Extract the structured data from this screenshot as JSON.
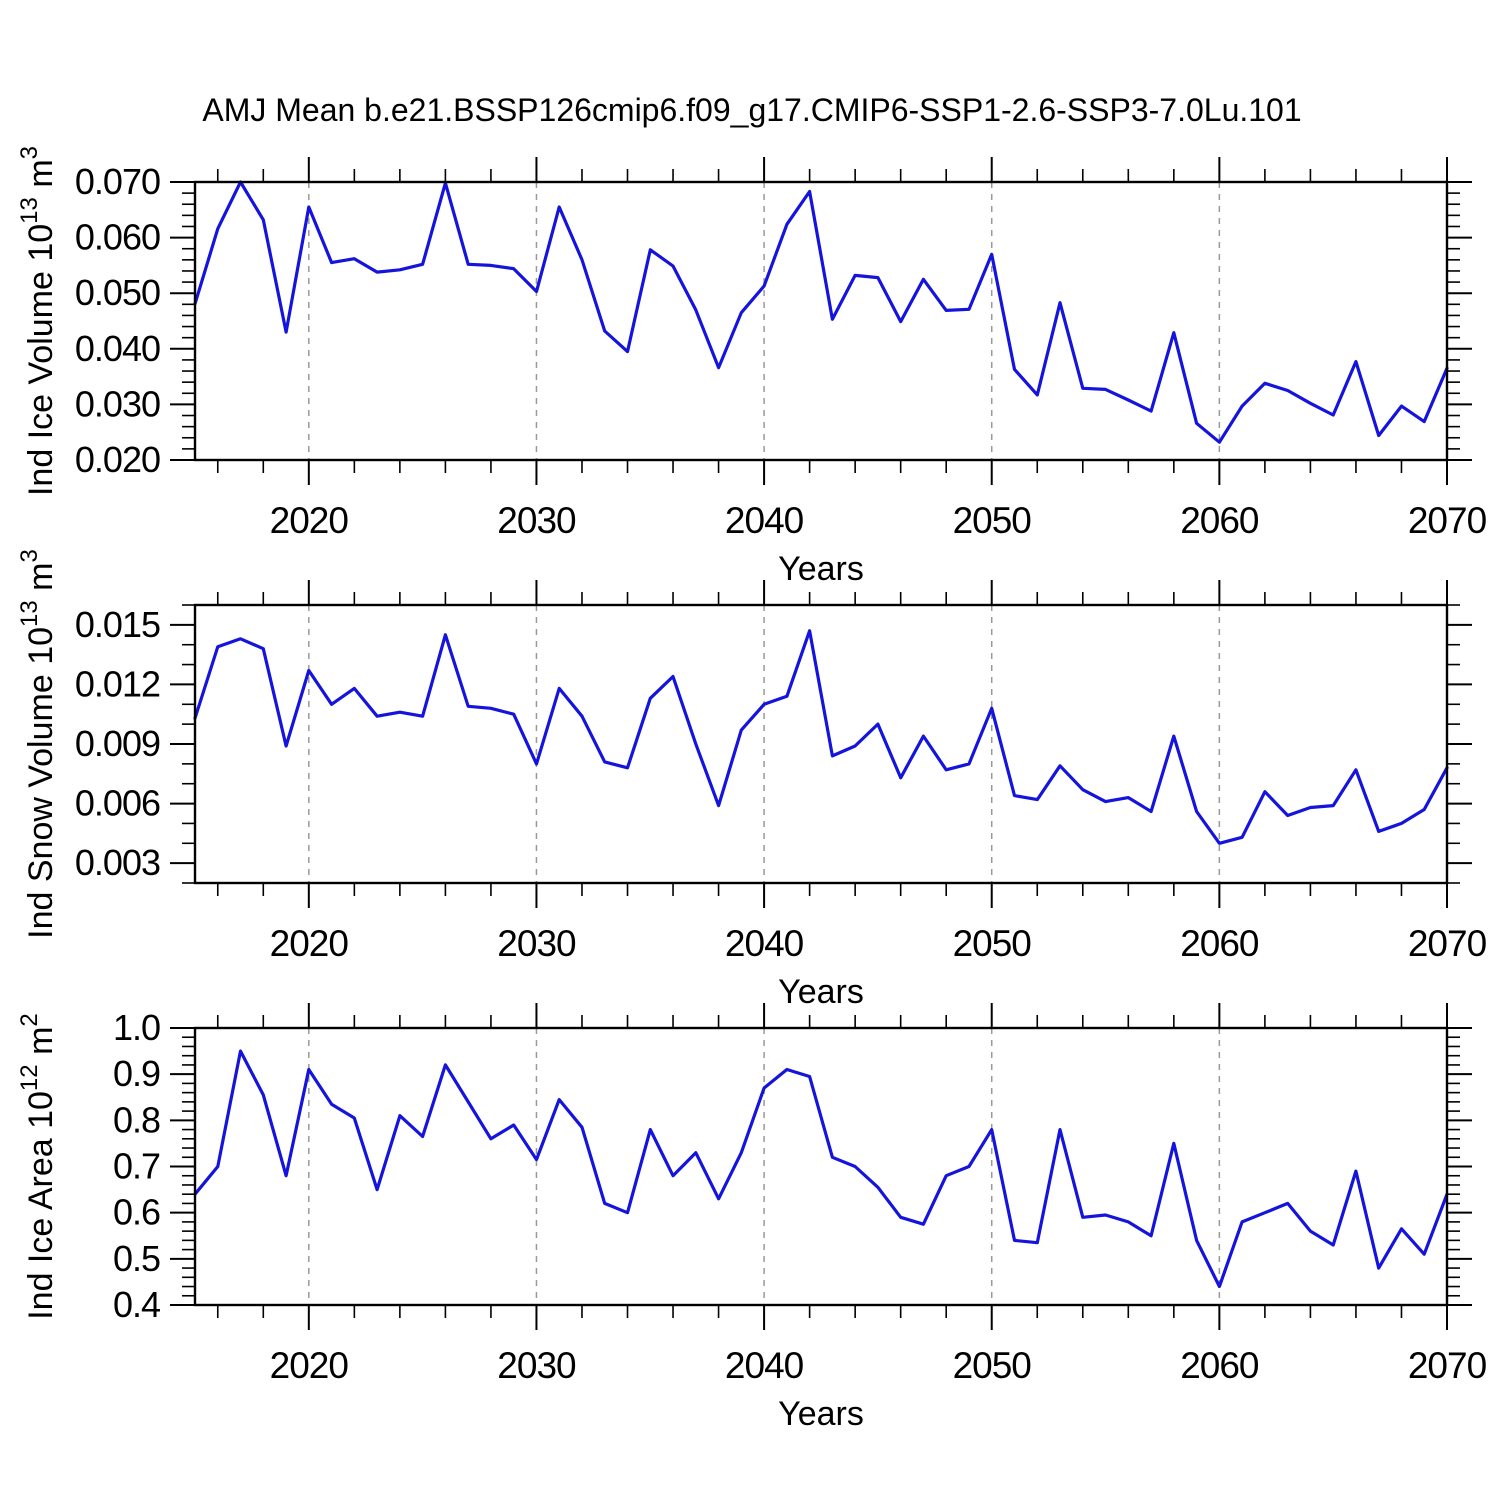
{
  "title": "AMJ Mean b.e21.BSSP126cmip6.f09_g17.CMIP6-SSP1-2.6-SSP3-7.0Lu.101",
  "xlabel": "Years",
  "line_color": "#1414dd",
  "grid_color": "#999999",
  "frame_color": "#000000",
  "text_color": "#000000",
  "chart_data": [
    {
      "type": "line",
      "name": "ind-ice-volume",
      "ylabel": "Ind Ice Volume 10^13 m^3",
      "ylabel_parts": [
        {
          "t": "Ind Ice Volume 10"
        },
        {
          "t": "13",
          "sup": true
        },
        {
          "t": " m"
        },
        {
          "t": "3",
          "sup": true
        }
      ],
      "xlabel": "Years",
      "xlim": [
        2015,
        2070
      ],
      "ylim": [
        0.02,
        0.07
      ],
      "yticks": [
        0.02,
        0.03,
        0.04,
        0.05,
        0.06,
        0.07
      ],
      "ytick_labels": [
        "0.020",
        "0.030",
        "0.040",
        "0.050",
        "0.060",
        "0.070"
      ],
      "yminor": 0.002,
      "xticks": [
        2020,
        2030,
        2040,
        2050,
        2060,
        2070
      ],
      "xtick_labels": [
        "2020",
        "2030",
        "2040",
        "2050",
        "2060",
        "2070"
      ],
      "xminor": 2,
      "grid_x": [
        2020,
        2030,
        2040,
        2050,
        2060
      ],
      "grid": "vertical-dashed",
      "legend": "none",
      "x": [
        2015,
        2016,
        2017,
        2018,
        2019,
        2020,
        2021,
        2022,
        2023,
        2024,
        2025,
        2026,
        2027,
        2028,
        2029,
        2030,
        2031,
        2032,
        2033,
        2034,
        2035,
        2036,
        2037,
        2038,
        2039,
        2040,
        2041,
        2042,
        2043,
        2044,
        2045,
        2046,
        2047,
        2048,
        2049,
        2050,
        2051,
        2052,
        2053,
        2054,
        2055,
        2056,
        2057,
        2058,
        2059,
        2060,
        2061,
        2062,
        2063,
        2064,
        2065,
        2066,
        2067,
        2068,
        2069,
        2070
      ],
      "values": [
        0.0481,
        0.0616,
        0.07,
        0.0632,
        0.043,
        0.0655,
        0.0555,
        0.0562,
        0.0538,
        0.0542,
        0.0552,
        0.0698,
        0.0552,
        0.055,
        0.0544,
        0.0503,
        0.0655,
        0.056,
        0.0432,
        0.0395,
        0.0578,
        0.0549,
        0.047,
        0.0366,
        0.0465,
        0.0513,
        0.0624,
        0.0683,
        0.0453,
        0.0532,
        0.0528,
        0.0449,
        0.0525,
        0.0469,
        0.0471,
        0.057,
        0.0363,
        0.0317,
        0.0483,
        0.0329,
        0.0327,
        0.0308,
        0.0288,
        0.0429,
        0.0266,
        0.0232,
        0.0297,
        0.0338,
        0.0325,
        0.0302,
        0.0281,
        0.0377,
        0.0244,
        0.0297,
        0.0269,
        0.0365
      ]
    },
    {
      "type": "line",
      "name": "ind-snow-volume",
      "ylabel": "Ind Snow Volume 10^13 m^3",
      "ylabel_parts": [
        {
          "t": "Ind Snow Volume 10"
        },
        {
          "t": "13",
          "sup": true
        },
        {
          "t": " m"
        },
        {
          "t": "3",
          "sup": true
        }
      ],
      "xlabel": "Years",
      "xlim": [
        2015,
        2070
      ],
      "ylim": [
        0.002,
        0.016
      ],
      "yticks": [
        0.003,
        0.006,
        0.009,
        0.012,
        0.015
      ],
      "ytick_labels": [
        "0.003",
        "0.006",
        "0.009",
        "0.012",
        "0.015"
      ],
      "yminor": 0.001,
      "xticks": [
        2020,
        2030,
        2040,
        2050,
        2060,
        2070
      ],
      "xtick_labels": [
        "2020",
        "2030",
        "2040",
        "2050",
        "2060",
        "2070"
      ],
      "xminor": 2,
      "grid_x": [
        2020,
        2030,
        2040,
        2050,
        2060
      ],
      "grid": "vertical-dashed",
      "legend": "none",
      "x": [
        2015,
        2016,
        2017,
        2018,
        2019,
        2020,
        2021,
        2022,
        2023,
        2024,
        2025,
        2026,
        2027,
        2028,
        2029,
        2030,
        2031,
        2032,
        2033,
        2034,
        2035,
        2036,
        2037,
        2038,
        2039,
        2040,
        2041,
        2042,
        2043,
        2044,
        2045,
        2046,
        2047,
        2048,
        2049,
        2050,
        2051,
        2052,
        2053,
        2054,
        2055,
        2056,
        2057,
        2058,
        2059,
        2060,
        2061,
        2062,
        2063,
        2064,
        2065,
        2066,
        2067,
        2068,
        2069,
        2070
      ],
      "values": [
        0.0103,
        0.0139,
        0.0143,
        0.0138,
        0.0089,
        0.0127,
        0.011,
        0.0118,
        0.0104,
        0.0106,
        0.0104,
        0.0145,
        0.0109,
        0.0108,
        0.0105,
        0.008,
        0.0118,
        0.0104,
        0.0081,
        0.0078,
        0.0113,
        0.0124,
        0.009,
        0.0059,
        0.0097,
        0.011,
        0.0114,
        0.0147,
        0.0084,
        0.0089,
        0.01,
        0.0073,
        0.0094,
        0.0077,
        0.008,
        0.0108,
        0.0064,
        0.0062,
        0.0079,
        0.0067,
        0.0061,
        0.0063,
        0.0056,
        0.0094,
        0.0056,
        0.004,
        0.0043,
        0.0066,
        0.0054,
        0.0058,
        0.0059,
        0.0077,
        0.0046,
        0.005,
        0.0057,
        0.0078
      ]
    },
    {
      "type": "line",
      "name": "ind-ice-area",
      "ylabel": "Ind Ice Area 10^12 m^2",
      "ylabel_parts": [
        {
          "t": "Ind Ice Area 10"
        },
        {
          "t": "12",
          "sup": true
        },
        {
          "t": " m"
        },
        {
          "t": "2",
          "sup": true
        }
      ],
      "xlabel": "Years",
      "xlim": [
        2015,
        2070
      ],
      "ylim": [
        0.4,
        1.0
      ],
      "yticks": [
        0.4,
        0.5,
        0.6,
        0.7,
        0.8,
        0.9,
        1.0
      ],
      "ytick_labels": [
        "0.4",
        "0.5",
        "0.6",
        "0.7",
        "0.8",
        "0.9",
        "1.0"
      ],
      "yminor": 0.02,
      "xticks": [
        2020,
        2030,
        2040,
        2050,
        2060,
        2070
      ],
      "xtick_labels": [
        "2020",
        "2030",
        "2040",
        "2050",
        "2060",
        "2070"
      ],
      "xminor": 2,
      "grid_x": [
        2020,
        2030,
        2040,
        2050,
        2060
      ],
      "grid": "vertical-dashed",
      "legend": "none",
      "x": [
        2015,
        2016,
        2017,
        2018,
        2019,
        2020,
        2021,
        2022,
        2023,
        2024,
        2025,
        2026,
        2027,
        2028,
        2029,
        2030,
        2031,
        2032,
        2033,
        2034,
        2035,
        2036,
        2037,
        2038,
        2039,
        2040,
        2041,
        2042,
        2043,
        2044,
        2045,
        2046,
        2047,
        2048,
        2049,
        2050,
        2051,
        2052,
        2053,
        2054,
        2055,
        2056,
        2057,
        2058,
        2059,
        2060,
        2061,
        2062,
        2063,
        2064,
        2065,
        2066,
        2067,
        2068,
        2069,
        2070
      ],
      "values": [
        0.64,
        0.7,
        0.95,
        0.855,
        0.68,
        0.91,
        0.835,
        0.805,
        0.65,
        0.81,
        0.765,
        0.92,
        0.84,
        0.76,
        0.79,
        0.715,
        0.845,
        0.785,
        0.62,
        0.6,
        0.78,
        0.68,
        0.73,
        0.63,
        0.73,
        0.87,
        0.91,
        0.895,
        0.72,
        0.7,
        0.655,
        0.59,
        0.575,
        0.68,
        0.7,
        0.78,
        0.54,
        0.535,
        0.78,
        0.59,
        0.595,
        0.58,
        0.55,
        0.75,
        0.54,
        0.44,
        0.58,
        0.6,
        0.62,
        0.56,
        0.53,
        0.69,
        0.48,
        0.565,
        0.51,
        0.64
      ]
    }
  ]
}
